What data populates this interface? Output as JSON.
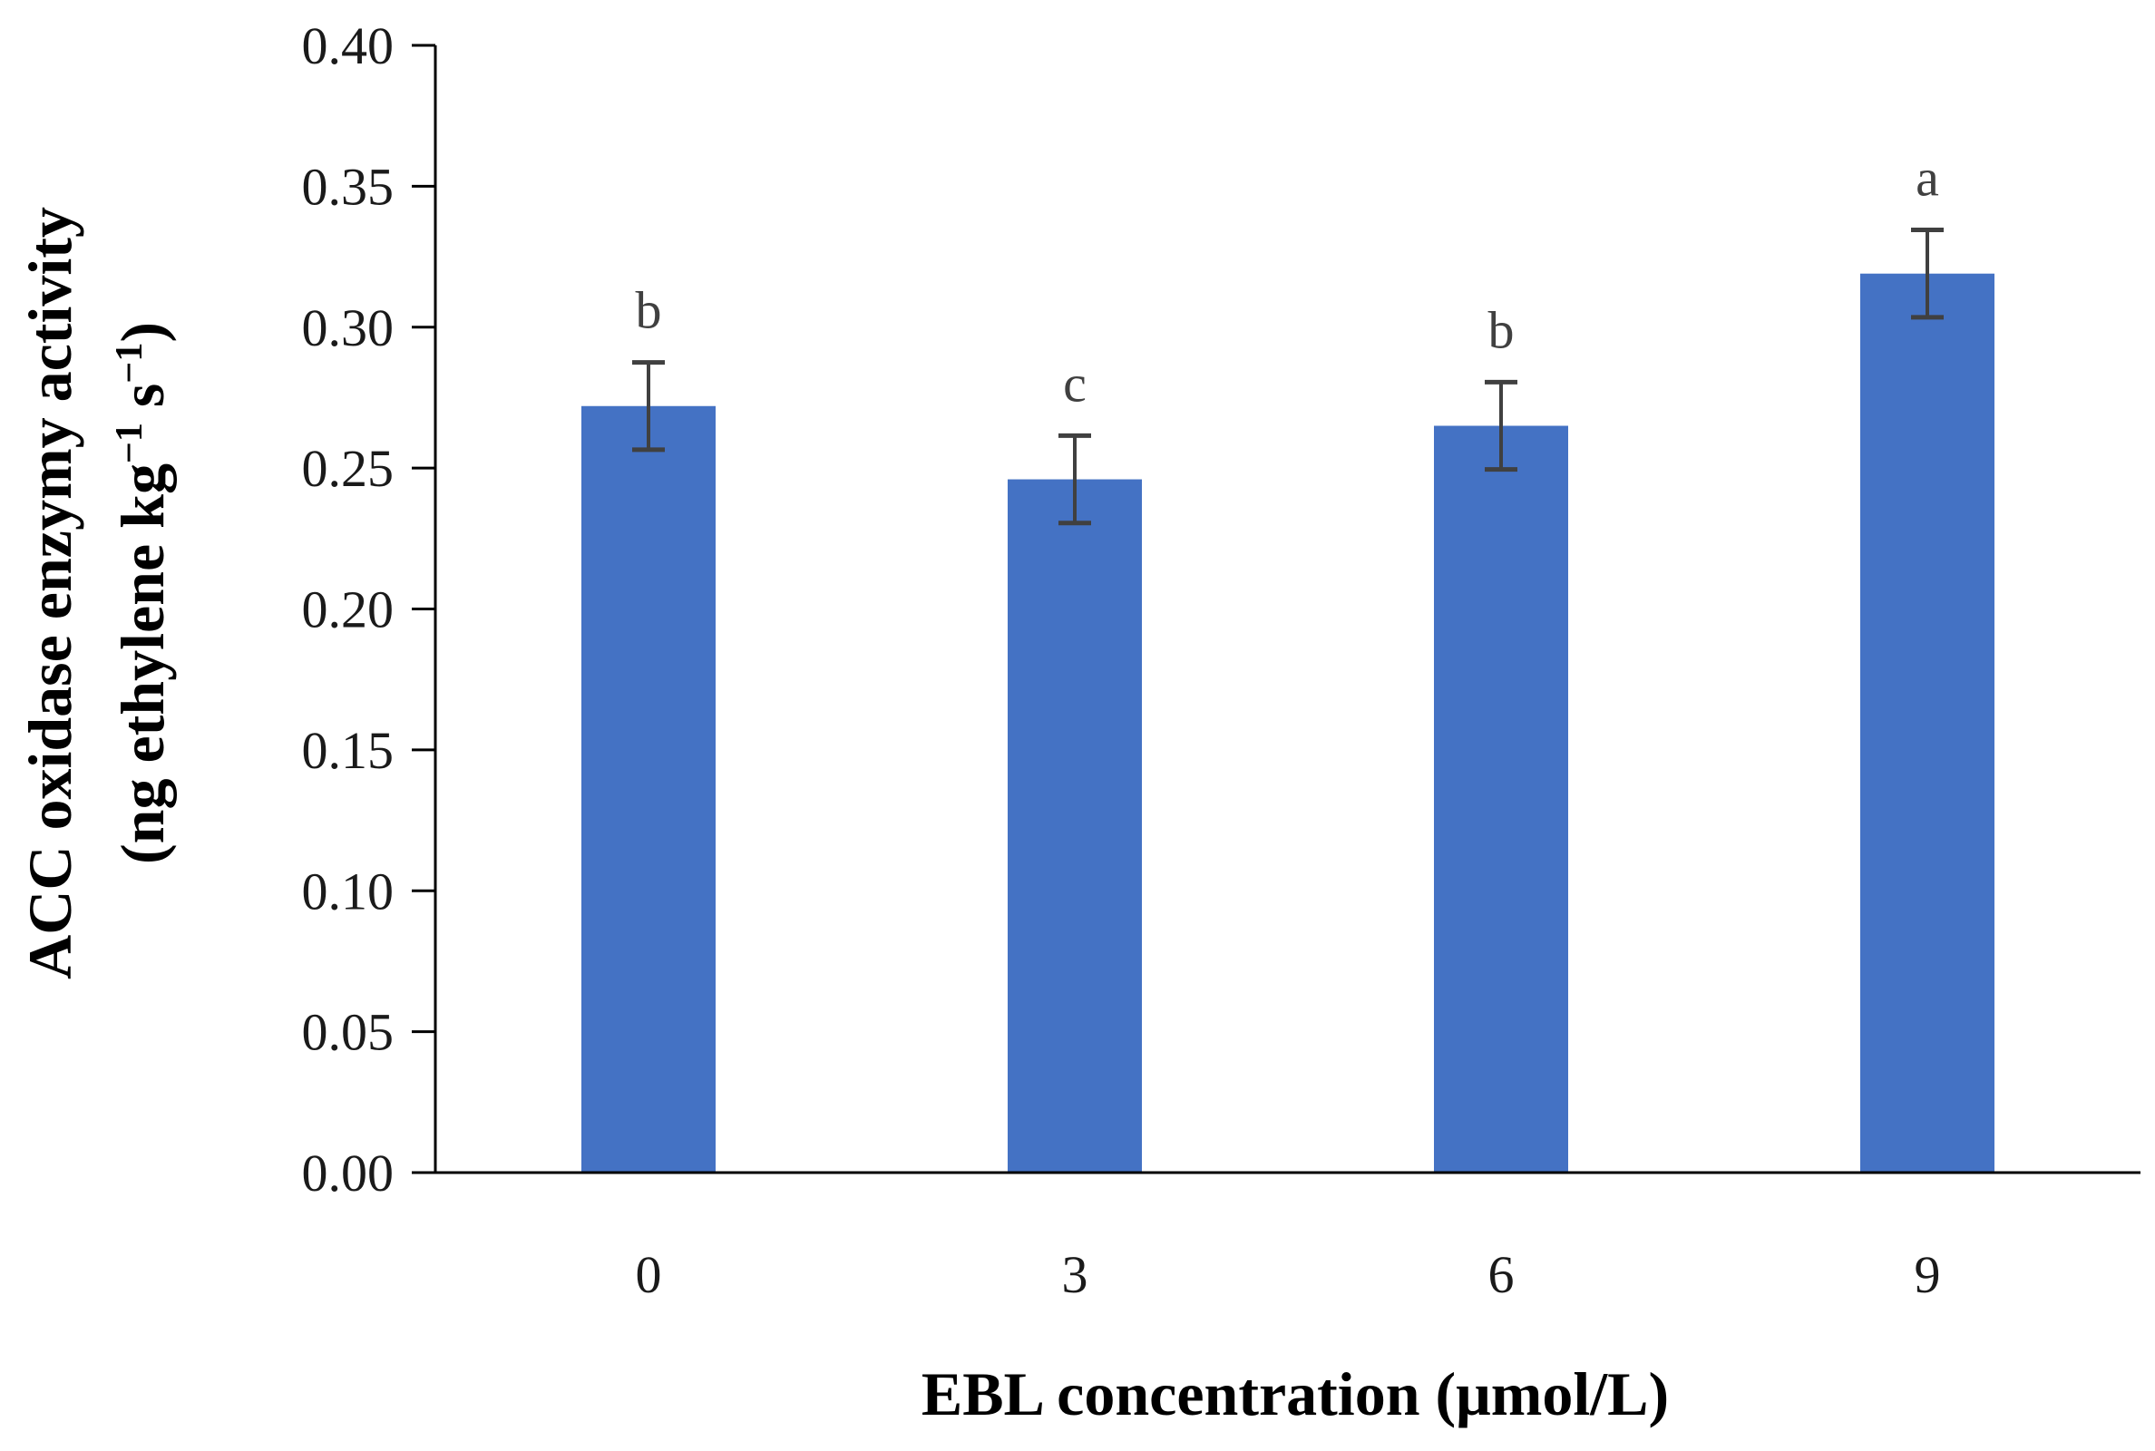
{
  "chart_data": {
    "type": "bar",
    "categories": [
      "0",
      "3",
      "6",
      "9"
    ],
    "values": [
      0.272,
      0.246,
      0.265,
      0.319
    ],
    "errors": [
      0.0155,
      0.0155,
      0.0155,
      0.0155
    ],
    "significance": [
      "b",
      "c",
      "b",
      "a"
    ],
    "xlabel": "EBL concentration (μmol/L)",
    "ylabel": {
      "line1": "ACC oxidase enzymy activity",
      "line2_pre": "(ng ethylene kg",
      "line2_sup1": "−1",
      "line2_mid": " s",
      "line2_sup2": "−1",
      "line2_post": ")"
    },
    "yticks": [
      "0.00",
      "0.05",
      "0.10",
      "0.15",
      "0.20",
      "0.25",
      "0.30",
      "0.35",
      "0.40"
    ],
    "ylim": [
      0,
      0.4
    ],
    "grid": false,
    "colors": {
      "bar": "#4472c4",
      "error_bar": "#404040",
      "axis": "#000000"
    }
  }
}
